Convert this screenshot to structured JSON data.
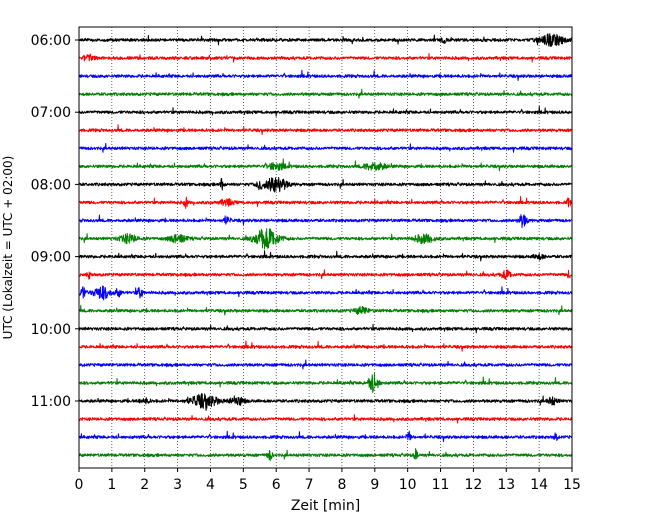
{
  "chart_data": {
    "type": "line",
    "title": "",
    "xlabel": "Zeit  [min]",
    "ylabel": "UTC (Lokalzeit = UTC + 02:00)",
    "xlim": [
      0,
      15
    ],
    "x_ticks": [
      0,
      1,
      2,
      3,
      4,
      5,
      6,
      7,
      8,
      9,
      10,
      11,
      12,
      13,
      14,
      15
    ],
    "y_ticks": [
      "06:00",
      "07:00",
      "08:00",
      "09:00",
      "10:00",
      "11:00"
    ],
    "grid": "vertical dotted",
    "legend": "none",
    "trace_colors": [
      "#000000",
      "#ff0000",
      "#0000ff",
      "#008000"
    ],
    "traces": [
      {
        "start": "06:00",
        "color": "#000000",
        "events": [
          [
            14.4,
            0.5,
            0.7
          ],
          [
            11.1,
            0.25,
            0.15
          ]
        ]
      },
      {
        "start": "06:15",
        "color": "#ff0000",
        "events": [
          [
            0.3,
            0.3,
            0.3
          ]
        ]
      },
      {
        "start": "06:30",
        "color": "#0000ff",
        "events": []
      },
      {
        "start": "06:45",
        "color": "#008000",
        "events": []
      },
      {
        "start": "07:00",
        "color": "#000000",
        "events": []
      },
      {
        "start": "07:15",
        "color": "#ff0000",
        "events": []
      },
      {
        "start": "07:30",
        "color": "#0000ff",
        "events": []
      },
      {
        "start": "07:45",
        "color": "#008000",
        "events": [
          [
            9.0,
            0.35,
            0.6
          ],
          [
            6.0,
            0.3,
            0.5
          ]
        ]
      },
      {
        "start": "08:00",
        "color": "#000000",
        "events": [
          [
            4.35,
            0.55,
            0.1
          ],
          [
            6.0,
            0.7,
            0.6
          ],
          [
            5.5,
            0.4,
            0.2
          ]
        ]
      },
      {
        "start": "08:15",
        "color": "#ff0000",
        "events": [
          [
            3.25,
            0.5,
            0.1
          ],
          [
            14.9,
            0.4,
            0.1
          ],
          [
            4.5,
            0.25,
            0.4
          ]
        ]
      },
      {
        "start": "08:30",
        "color": "#0000ff",
        "events": [
          [
            13.5,
            0.55,
            0.25
          ],
          [
            4.5,
            0.3,
            0.2
          ]
        ]
      },
      {
        "start": "08:45",
        "color": "#008000",
        "events": [
          [
            5.7,
            0.9,
            0.7
          ],
          [
            1.5,
            0.35,
            0.5
          ],
          [
            3.0,
            0.35,
            0.5
          ],
          [
            10.5,
            0.35,
            0.6
          ]
        ]
      },
      {
        "start": "09:00",
        "color": "#000000",
        "events": [
          [
            14.0,
            0.2,
            0.3
          ]
        ]
      },
      {
        "start": "09:15",
        "color": "#ff0000",
        "events": [
          [
            13.0,
            0.35,
            0.3
          ],
          [
            0.3,
            0.3,
            0.1
          ],
          [
            14.9,
            0.3,
            0.1
          ]
        ]
      },
      {
        "start": "09:30",
        "color": "#0000ff",
        "events": [
          [
            0.1,
            0.5,
            0.2
          ],
          [
            0.7,
            0.55,
            0.5
          ],
          [
            1.85,
            0.5,
            0.15
          ],
          [
            1.2,
            0.3,
            0.2
          ]
        ]
      },
      {
        "start": "09:45",
        "color": "#008000",
        "events": [
          [
            8.6,
            0.3,
            0.4
          ]
        ]
      },
      {
        "start": "10:00",
        "color": "#000000",
        "events": []
      },
      {
        "start": "10:15",
        "color": "#ff0000",
        "events": []
      },
      {
        "start": "10:30",
        "color": "#0000ff",
        "events": []
      },
      {
        "start": "10:45",
        "color": "#008000",
        "events": [
          [
            8.95,
            0.8,
            0.3
          ]
        ]
      },
      {
        "start": "11:00",
        "color": "#000000",
        "events": [
          [
            3.8,
            0.55,
            0.8
          ],
          [
            4.8,
            0.4,
            0.4
          ],
          [
            14.4,
            0.3,
            0.3
          ],
          [
            2.0,
            0.2,
            0.3
          ]
        ]
      },
      {
        "start": "11:15",
        "color": "#ff0000",
        "events": []
      },
      {
        "start": "11:30",
        "color": "#0000ff",
        "events": [
          [
            10.05,
            0.45,
            0.1
          ],
          [
            14.5,
            0.35,
            0.1
          ]
        ]
      },
      {
        "start": "11:45",
        "color": "#008000",
        "events": [
          [
            10.25,
            0.55,
            0.1
          ],
          [
            5.8,
            0.4,
            0.15
          ]
        ]
      }
    ]
  }
}
